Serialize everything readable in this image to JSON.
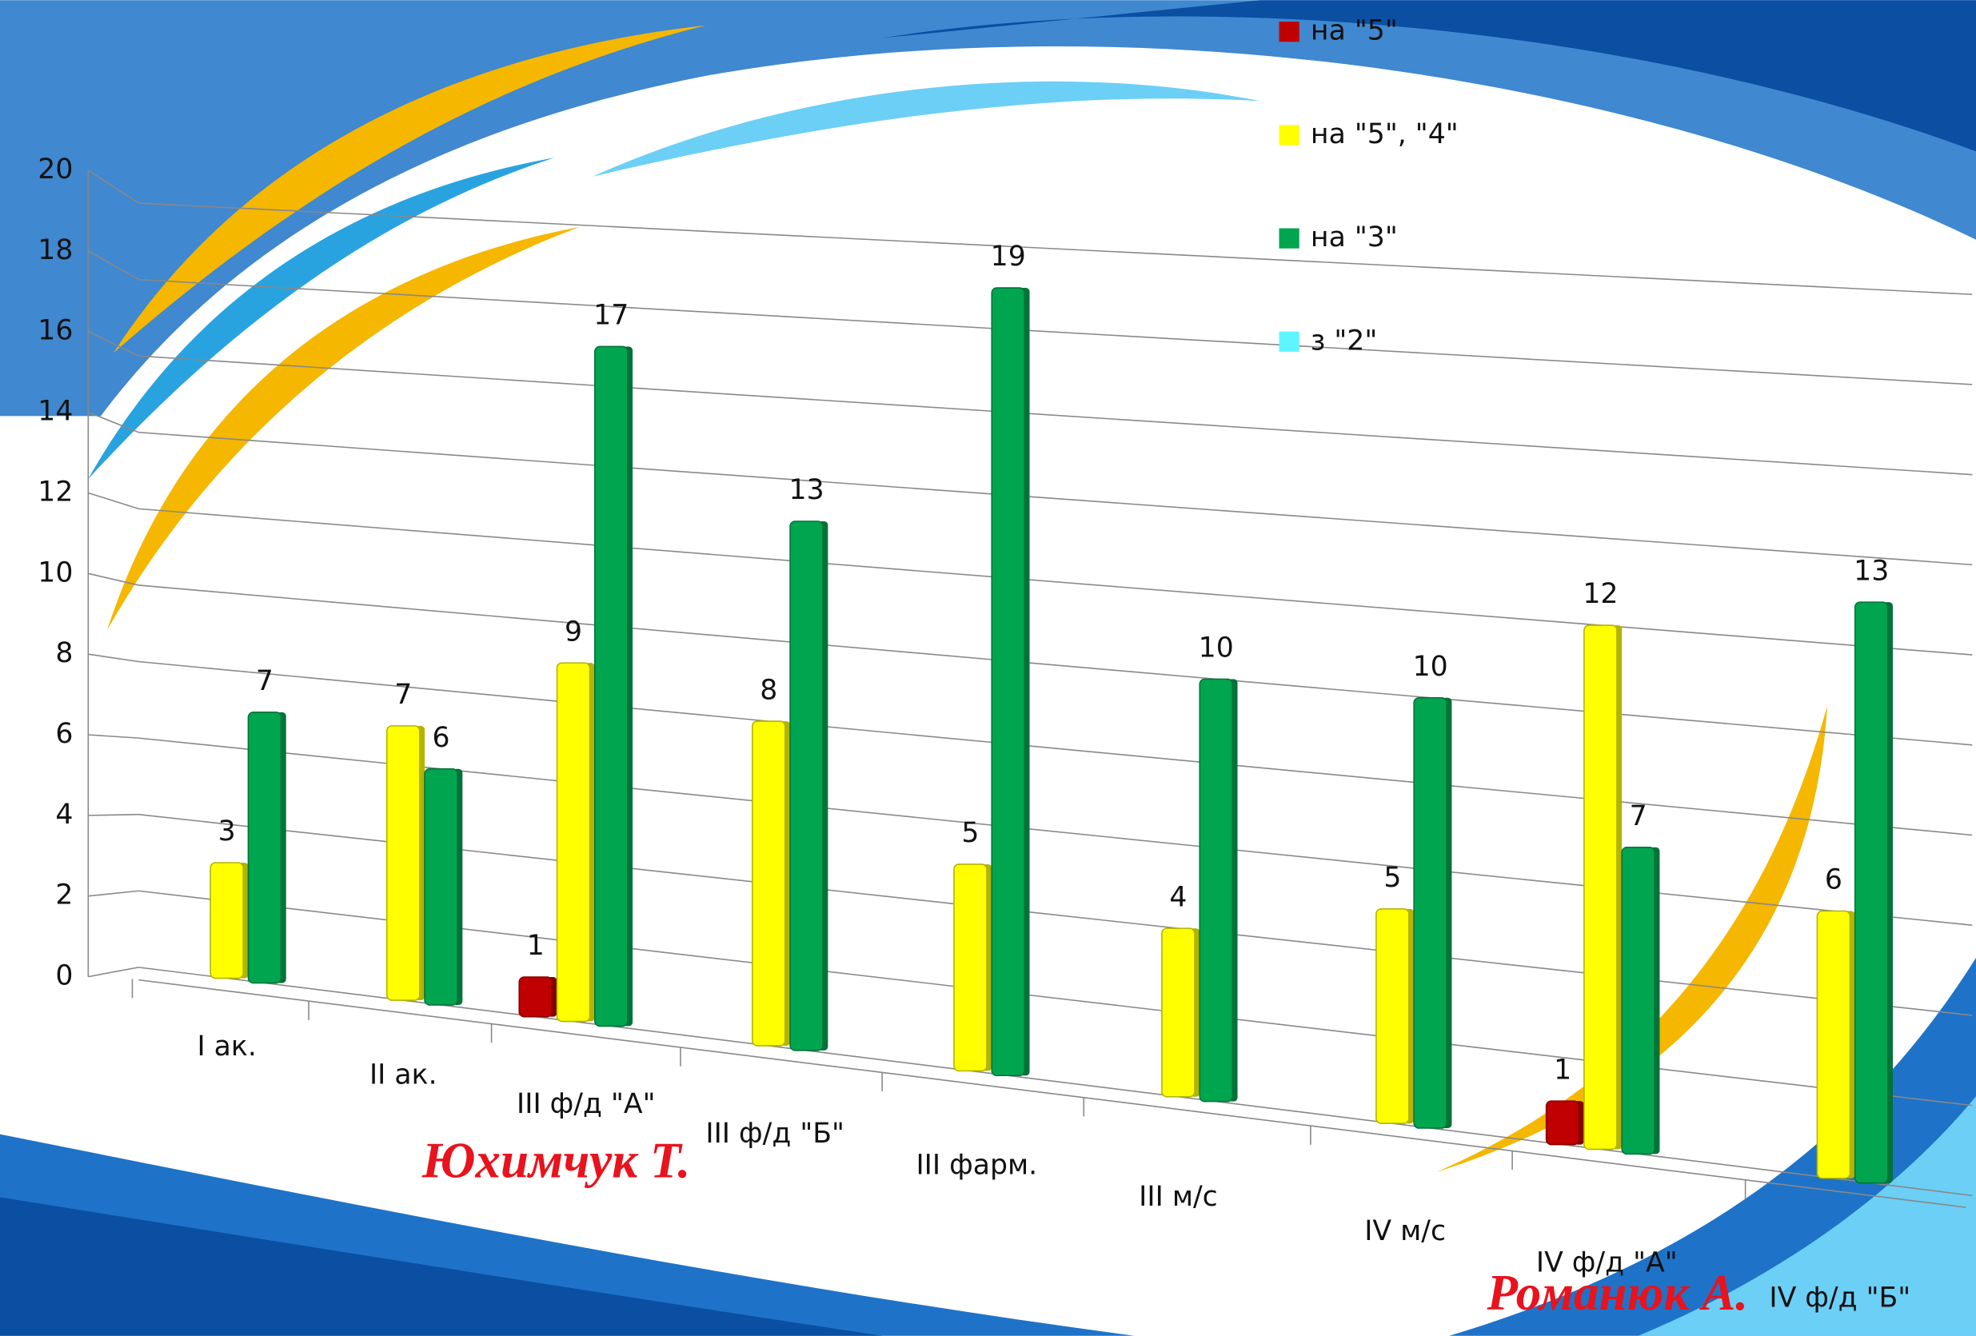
{
  "chart_data": {
    "type": "bar3d",
    "categories": [
      "I ак.",
      "II ак.",
      "III ф/д \"А\"",
      "III ф/д \"Б\"",
      "III фарм.",
      "III м/с",
      "IV  м/с",
      "IV  ф/д \"А\"",
      "IV  ф/д \"Б\""
    ],
    "series": [
      {
        "name": "на \"5\"",
        "color": "#c00000",
        "values": [
          null,
          null,
          1,
          null,
          null,
          null,
          null,
          1,
          null
        ]
      },
      {
        "name": "на \"5\", \"4\"",
        "color": "#ffff00",
        "values": [
          3,
          7,
          9,
          8,
          5,
          4,
          5,
          12,
          6
        ]
      },
      {
        "name": "на \"3\"",
        "color": "#00a550",
        "values": [
          7,
          6,
          17,
          13,
          19,
          10,
          10,
          7,
          13
        ]
      },
      {
        "name": "з  \"2\"",
        "color": "#5ff5ff",
        "values": [
          null,
          null,
          null,
          null,
          null,
          null,
          null,
          null,
          null
        ]
      }
    ],
    "ylim": [
      0,
      20
    ],
    "yticks": [
      0,
      2,
      4,
      6,
      8,
      10,
      12,
      14,
      16,
      18,
      20
    ],
    "grid": true,
    "annotations": [
      "Юхимчук  Т.",
      "Романюк  А."
    ]
  }
}
